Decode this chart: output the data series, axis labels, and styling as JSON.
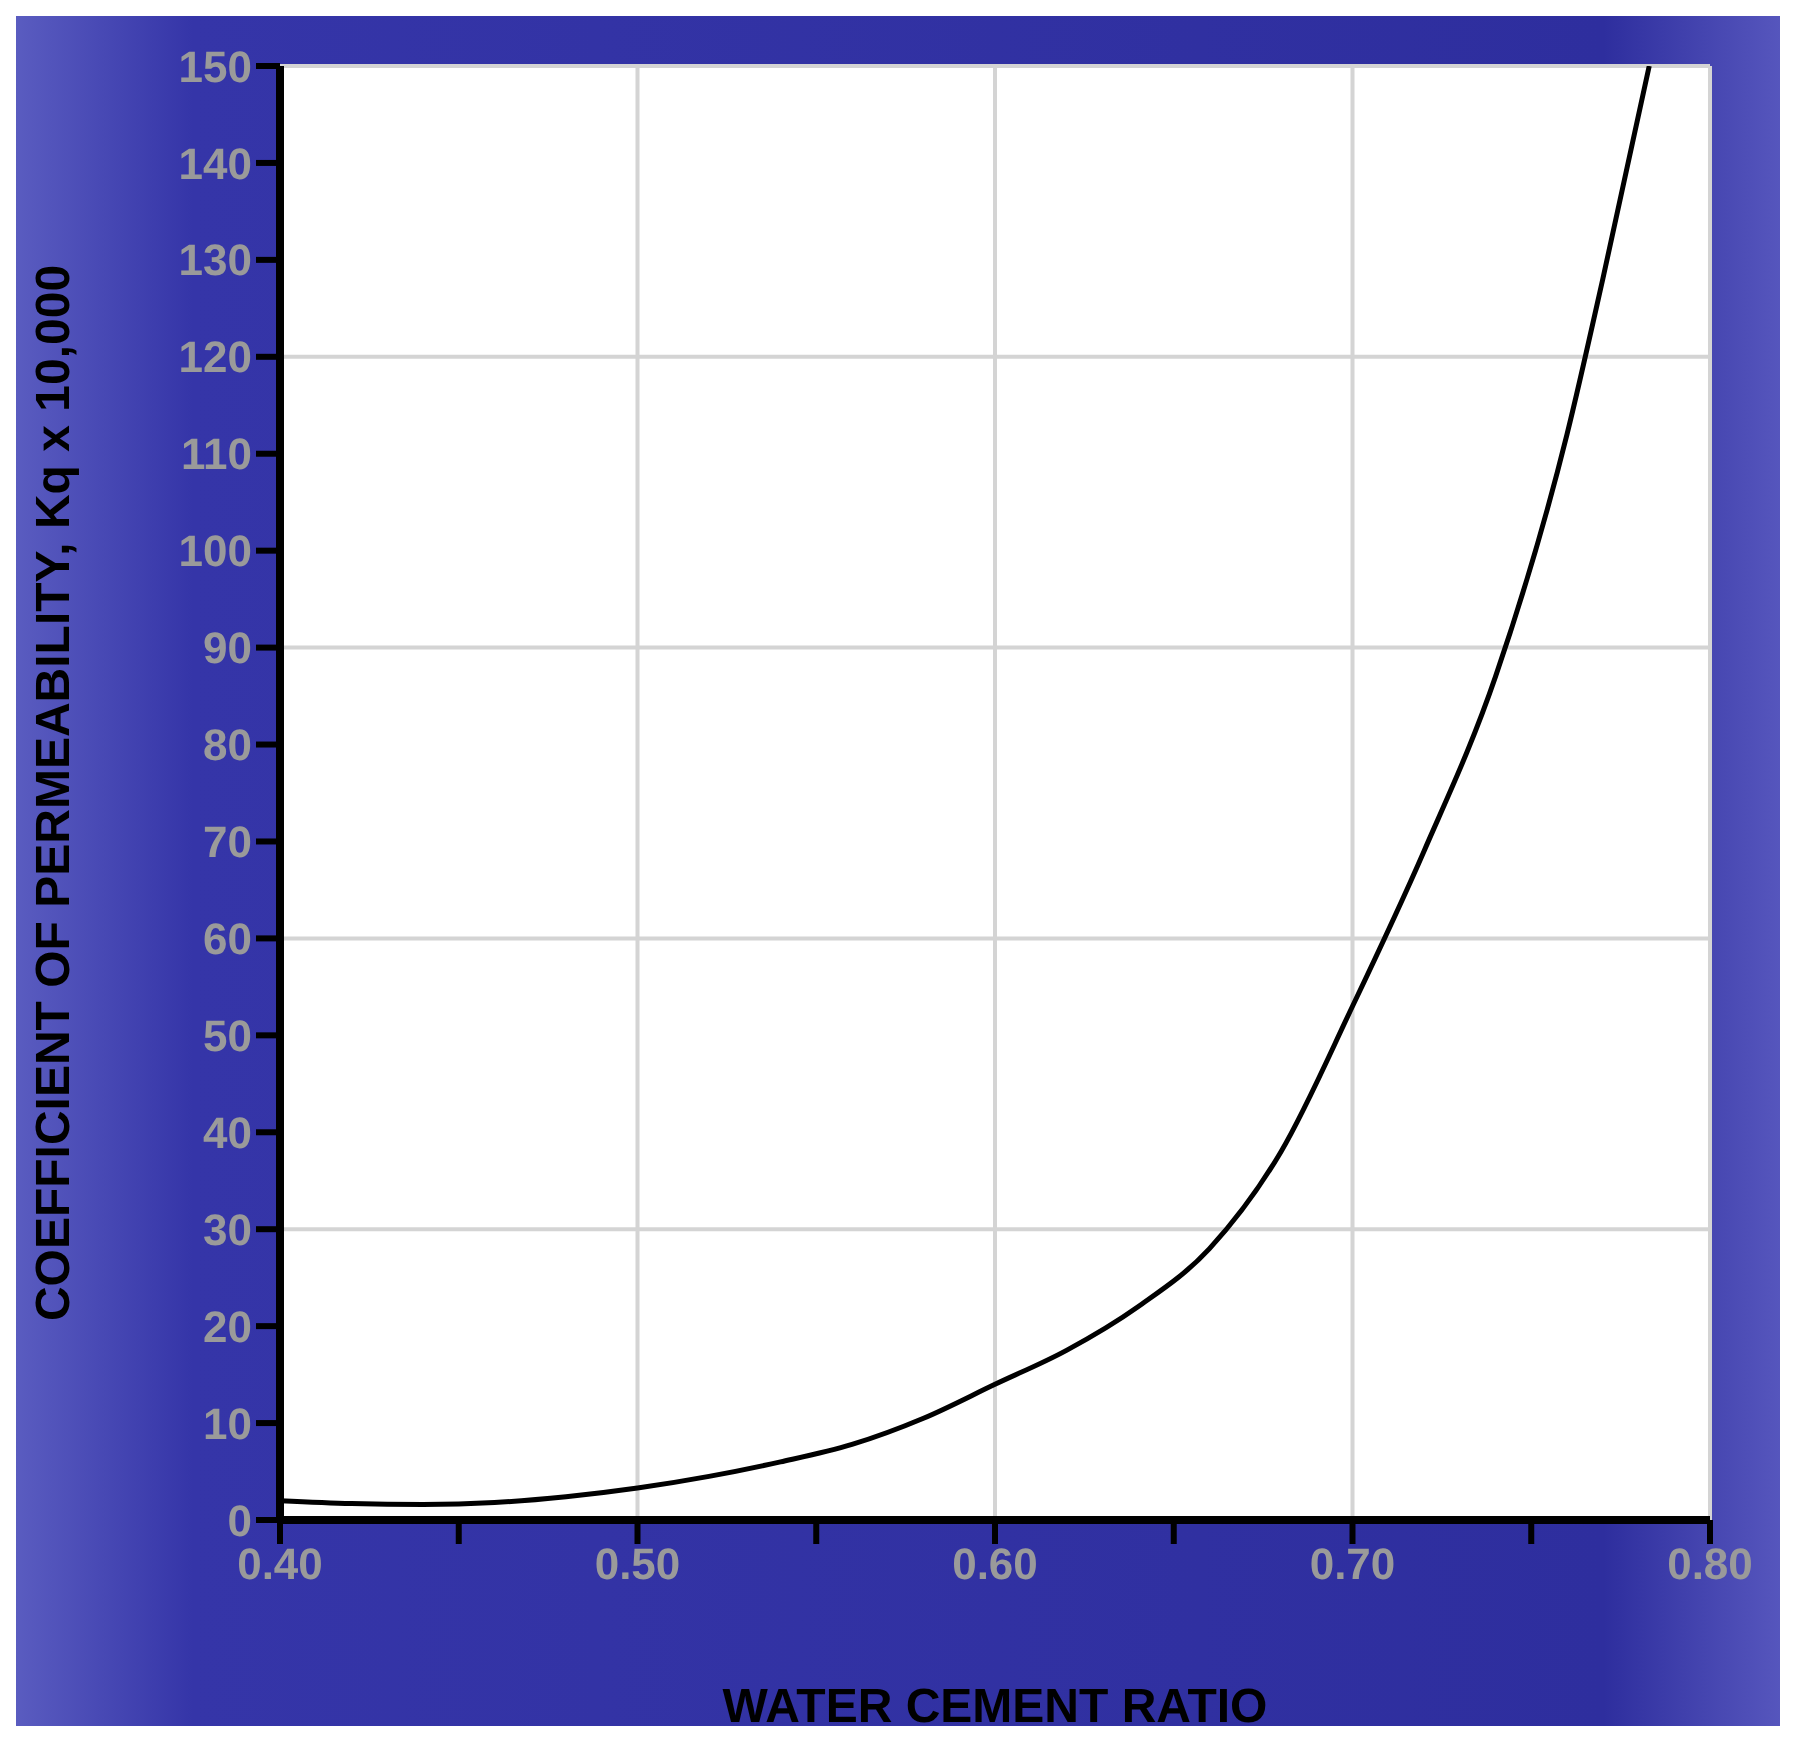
{
  "chart_data": {
    "type": "line",
    "xlabel": "WATER CEMENT RATIO",
    "ylabel": "COEFFICIENT OF PERMEABILITY, Kq x 10,000",
    "x": [
      0.4,
      0.42,
      0.44,
      0.46,
      0.48,
      0.5,
      0.52,
      0.54,
      0.56,
      0.58,
      0.6,
      0.62,
      0.64,
      0.66,
      0.68,
      0.7,
      0.72,
      0.74,
      0.76,
      0.77,
      0.783
    ],
    "series": [
      {
        "color": "#000000",
        "values": [
          2,
          1.7,
          1.6,
          1.8,
          2.4,
          3.3,
          4.5,
          6,
          7.8,
          10.5,
          14,
          17.5,
          22,
          28,
          38,
          53,
          69,
          87,
          112,
          128,
          150
        ]
      }
    ],
    "xlim": [
      0.4,
      0.8
    ],
    "xticks": [
      {
        "value": 0.4,
        "label": "0.40"
      },
      {
        "value": 0.45,
        "label": null
      },
      {
        "value": 0.5,
        "label": "0.50"
      },
      {
        "value": 0.55,
        "label": null
      },
      {
        "value": 0.6,
        "label": "0.60"
      },
      {
        "value": 0.65,
        "label": null
      },
      {
        "value": 0.7,
        "label": "0.70"
      },
      {
        "value": 0.75,
        "label": null
      },
      {
        "value": 0.8,
        "label": "0.80"
      }
    ],
    "ylim": [
      0,
      150
    ],
    "yticks": [
      0,
      10,
      20,
      30,
      40,
      50,
      60,
      70,
      80,
      90,
      100,
      110,
      120,
      130,
      140,
      150
    ],
    "grid": true,
    "marker": "none",
    "line_style": "solid"
  }
}
